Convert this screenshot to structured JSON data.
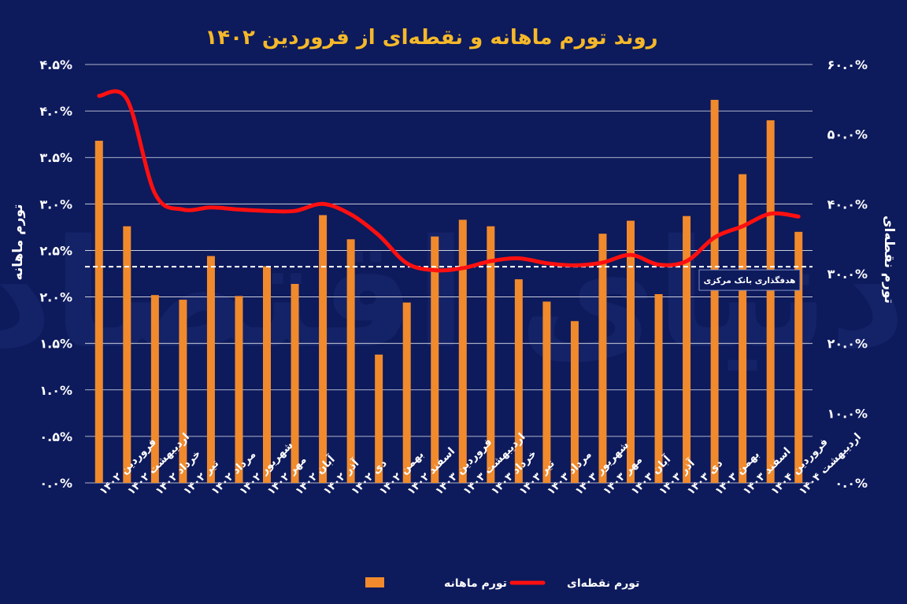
{
  "chart_data": {
    "type": "bar",
    "title": "روند تورم ماهانه و نقطه‌ای از فروردین ۱۴۰۲",
    "ylabel_left": "تورم ماهانه",
    "ylabel_right": "تورم نقطه‌ای",
    "ylim_left": [
      0,
      4.5
    ],
    "ylim_right": [
      0,
      60
    ],
    "yticks_left": [
      "۰.۰%",
      "۰.۵%",
      "۱.۰%",
      "۱.۵%",
      "۲.۰%",
      "۲.۵%",
      "۳.۰%",
      "۳.۵%",
      "۴.۰%",
      "۴.۵%"
    ],
    "yticks_right": [
      "۰.۰%",
      "۱۰.۰%",
      "۲۰.۰%",
      "۳۰.۰%",
      "۴۰.۰%",
      "۵۰.۰%",
      "۶۰.۰%"
    ],
    "grid": true,
    "categories": [
      "فروردین ۱۴۰۲",
      "اردیبهشت ۱۴۰۲",
      "خرداد ۱۴۰۲",
      "تیر ۱۴۰۲",
      "مرداد ۱۴۰۲",
      "شهریور ۱۴۰۲",
      "مهر ۱۴۰۲",
      "آبان ۱۴۰۲",
      "آذر ۱۴۰۲",
      "دی ۱۴۰۲",
      "بهمن ۱۴۰۲",
      "اسفند ۱۴۰۲",
      "فروردین ۱۴۰۳",
      "اردیبهشت ۱۴۰۳",
      "خرداد ۱۴۰۳",
      "تیر ۱۴۰۳",
      "مرداد ۱۴۰۳",
      "شهریور ۱۴۰۳",
      "مهر ۱۴۰۳",
      "آبان ۱۴۰۳",
      "آذر ۱۴۰۳",
      "دی ۱۴۰۳",
      "بهمن ۱۴۰۳",
      "اسفند ۱۴۰۳",
      "فروردین ۱۴۰۴",
      "اردیبهشت ۱۴۰۴"
    ],
    "series": [
      {
        "name": "تورم ماهانه",
        "kind": "bar",
        "axis": "left",
        "color": "#f08a2c",
        "values": [
          3.68,
          2.76,
          2.02,
          1.97,
          2.44,
          2.01,
          2.33,
          2.14,
          2.88,
          2.62,
          1.38,
          1.94,
          2.65,
          2.83,
          2.76,
          2.19,
          1.95,
          1.74,
          2.68,
          2.82,
          2.03,
          2.87,
          4.12,
          3.32,
          3.9,
          2.7
        ]
      },
      {
        "name": "تورم نقطه‌ای",
        "kind": "line",
        "axis": "right",
        "color": "#ff1010",
        "values": [
          55.5,
          55.0,
          41.5,
          39.2,
          39.5,
          39.2,
          39.0,
          39.0,
          40.0,
          38.5,
          35.5,
          31.5,
          30.5,
          30.8,
          31.8,
          32.2,
          31.5,
          31.2,
          31.6,
          32.7,
          31.3,
          31.8,
          35.2,
          36.8,
          38.6,
          38.2
        ]
      }
    ],
    "reference_line": {
      "axis": "right",
      "value": 31.0,
      "label": "هدفگذاری بانک مرکزی"
    },
    "legend_position": "bottom",
    "watermark": "دنیای اقتصاد",
    "colors": {
      "background": "#0d1a5c",
      "title": "#f5b82a",
      "grid": "#ffffff"
    }
  }
}
